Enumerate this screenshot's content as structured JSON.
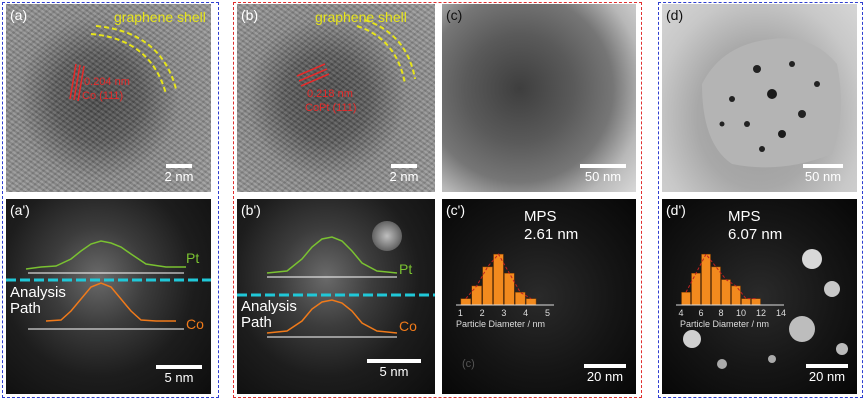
{
  "panels": {
    "a": {
      "label": "(a)",
      "shell": "graphene shell",
      "spacing": "0.204 nm",
      "plane": "Co (111)",
      "scale": "2 nm"
    },
    "b": {
      "label": "(b)",
      "shell": "graphene shell",
      "spacing": "0.218 nm",
      "plane": "CoPt (111)",
      "scale": "2 nm"
    },
    "c": {
      "label": "(c)",
      "scale": "50 nm"
    },
    "d": {
      "label": "(d)",
      "scale": "50 nm"
    },
    "a_prime": {
      "label": "(a')",
      "pt": "Pt",
      "co": "Co",
      "path_line1": "Analysis",
      "path_line2": "Path",
      "scale": "5 nm"
    },
    "b_prime": {
      "label": "(b')",
      "pt": "Pt",
      "co": "Co",
      "path_line1": "Analysis",
      "path_line2": "Path",
      "scale": "5 nm"
    },
    "c_prime": {
      "label": "(c')",
      "title": "MPS",
      "size": "2.61 nm",
      "xlabel": "Particle Diameter / nm",
      "scale": "20 nm",
      "ghost": "(c)"
    },
    "d_prime": {
      "label": "(d')",
      "title": "MPS",
      "size": "6.07 nm",
      "xlabel": "Particle Diameter / nm",
      "scale": "20 nm"
    }
  },
  "colors": {
    "blue_box": "#2f3fd0",
    "red_box": "#e03030",
    "pt_line": "#7ac231",
    "co_line": "#f07a1a",
    "path_line": "#20c8d8",
    "bar": "#f28a1e"
  },
  "chart_data": [
    {
      "type": "bar",
      "title": "MPS 2.61 nm",
      "xlabel": "Particle Diameter / nm",
      "ylabel": "",
      "categories": [
        1.25,
        1.75,
        2.25,
        2.75,
        3.25,
        3.75,
        4.25
      ],
      "values": [
        1,
        3,
        6,
        8,
        5,
        2,
        1
      ],
      "xticks": [
        "1",
        "2",
        "3",
        "4",
        "5"
      ],
      "xlim": [
        0.8,
        5.3
      ],
      "ylim": [
        0,
        8.5
      ]
    },
    {
      "type": "bar",
      "title": "MPS 6.07 nm",
      "xlabel": "Particle Diameter / nm",
      "ylabel": "",
      "categories": [
        4.5,
        5.5,
        6.5,
        7.5,
        8.5,
        9.5,
        10.5,
        11.5
      ],
      "values": [
        2,
        5,
        8,
        6,
        4,
        3,
        1,
        1
      ],
      "xticks": [
        "4",
        "6",
        "8",
        "10",
        "12",
        "14"
      ],
      "xlim": [
        3.5,
        14.3
      ],
      "ylim": [
        0,
        8.5
      ]
    }
  ]
}
